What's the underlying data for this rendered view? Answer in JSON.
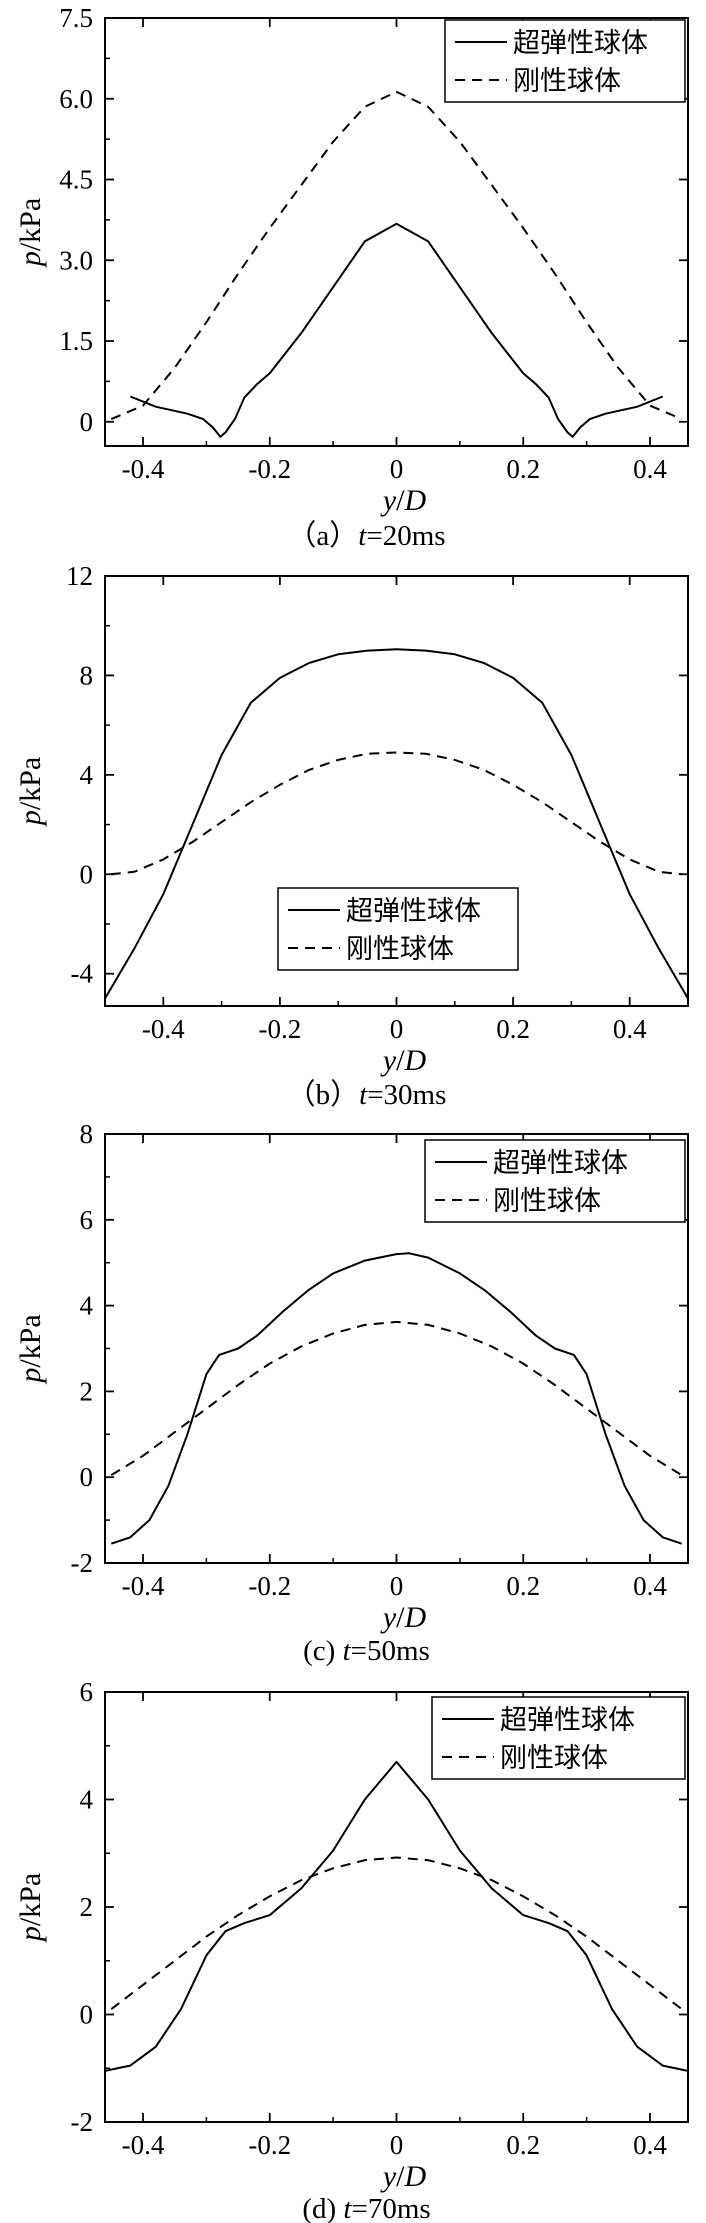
{
  "chart_data": [
    {
      "type": "line",
      "caption": {
        "prefix": "（a）",
        "var": "t",
        "eq": "=20ms"
      },
      "xlabel": {
        "var": "y",
        "sep": "/",
        "var2": "D"
      },
      "ylabel": {
        "var": "p",
        "unit": "/kPa"
      },
      "xlim": [
        -0.46,
        0.46
      ],
      "ylim": [
        -0.45,
        7.5
      ],
      "xticks": [
        -0.4,
        -0.2,
        0,
        0.2,
        0.4
      ],
      "yticks": [
        0,
        1.5,
        3.0,
        4.5,
        6.0,
        7.5
      ],
      "ytick_labels": [
        "0",
        "1.5",
        "3.0",
        "4.5",
        "6.0",
        "7.5"
      ],
      "legend": {
        "position": "top-right",
        "entries": [
          "超弹性球体",
          "刚性球体"
        ]
      },
      "series": [
        {
          "name": "超弹性球体",
          "style": "solid",
          "x": [
            -0.42,
            -0.38,
            -0.33,
            -0.305,
            -0.29,
            -0.278,
            -0.27,
            -0.255,
            -0.24,
            -0.22,
            -0.2,
            -0.15,
            -0.1,
            -0.05,
            0,
            0.05,
            0.1,
            0.15,
            0.2,
            0.22,
            0.24,
            0.255,
            0.27,
            0.278,
            0.29,
            0.305,
            0.33,
            0.38,
            0.42
          ],
          "y": [
            0.47,
            0.28,
            0.15,
            0.05,
            -0.1,
            -0.28,
            -0.2,
            0.05,
            0.45,
            0.7,
            0.9,
            1.65,
            2.5,
            3.35,
            3.68,
            3.35,
            2.5,
            1.65,
            0.9,
            0.7,
            0.45,
            0.05,
            -0.2,
            -0.28,
            -0.1,
            0.05,
            0.15,
            0.28,
            0.47
          ]
        },
        {
          "name": "刚性球体",
          "style": "dashed",
          "x": [
            -0.45,
            -0.4,
            -0.35,
            -0.3,
            -0.25,
            -0.2,
            -0.15,
            -0.1,
            -0.05,
            0,
            0.05,
            0.1,
            0.15,
            0.2,
            0.25,
            0.3,
            0.35,
            0.4,
            0.45
          ],
          "y": [
            0.05,
            0.3,
            1.0,
            1.85,
            2.75,
            3.6,
            4.4,
            5.2,
            5.85,
            6.13,
            5.85,
            5.2,
            4.4,
            3.6,
            2.75,
            1.85,
            1.0,
            0.3,
            0.05
          ]
        }
      ]
    },
    {
      "type": "line",
      "caption": {
        "prefix": "（b）",
        "var": "t",
        "eq": "=30ms"
      },
      "xlabel": {
        "var": "y",
        "sep": "/",
        "var2": "D"
      },
      "ylabel": {
        "var": "p",
        "unit": "/kPa"
      },
      "xlim": [
        -0.5,
        0.5
      ],
      "ylim": [
        -5.3,
        12
      ],
      "xticks": [
        -0.4,
        -0.2,
        0,
        0.2,
        0.4
      ],
      "yticks": [
        -4,
        0,
        4,
        8,
        12
      ],
      "ytick_labels": [
        "-4",
        "0",
        "4",
        "8",
        "12"
      ],
      "legend": {
        "position": "lower-center",
        "entries": [
          "超弹性球体",
          "刚性球体"
        ]
      },
      "series": [
        {
          "name": "超弹性球体",
          "style": "solid",
          "x": [
            -0.5,
            -0.45,
            -0.4,
            -0.35,
            -0.3,
            -0.25,
            -0.2,
            -0.15,
            -0.1,
            -0.05,
            0,
            0.05,
            0.1,
            0.15,
            0.2,
            0.25,
            0.3,
            0.35,
            0.4,
            0.45,
            0.5
          ],
          "y": [
            -5.0,
            -3.0,
            -0.8,
            2.0,
            4.8,
            6.9,
            7.9,
            8.5,
            8.85,
            9.0,
            9.05,
            9.0,
            8.85,
            8.5,
            7.9,
            6.9,
            4.8,
            2.0,
            -0.8,
            -3.0,
            -5.0
          ]
        },
        {
          "name": "刚性球体",
          "style": "dashed",
          "x": [
            -0.49,
            -0.45,
            -0.4,
            -0.35,
            -0.3,
            -0.25,
            -0.2,
            -0.15,
            -0.1,
            -0.05,
            0,
            0.05,
            0.1,
            0.15,
            0.2,
            0.25,
            0.3,
            0.35,
            0.4,
            0.45,
            0.49
          ],
          "y": [
            0.0,
            0.1,
            0.6,
            1.3,
            2.1,
            2.9,
            3.6,
            4.2,
            4.6,
            4.85,
            4.9,
            4.85,
            4.6,
            4.2,
            3.6,
            2.9,
            2.1,
            1.3,
            0.6,
            0.1,
            0.0
          ]
        }
      ]
    },
    {
      "type": "line",
      "caption": {
        "prefix": "(c) ",
        "var": "t",
        "eq": "=50ms"
      },
      "xlabel": {
        "var": "y",
        "sep": "/",
        "var2": "D"
      },
      "ylabel": {
        "var": "p",
        "unit": "/kPa"
      },
      "xlim": [
        -0.46,
        0.46
      ],
      "ylim": [
        -2,
        8
      ],
      "xticks": [
        -0.4,
        -0.2,
        0,
        0.2,
        0.4
      ],
      "yticks": [
        -2,
        0,
        2,
        4,
        6,
        8
      ],
      "ytick_labels": [
        "-2",
        "0",
        "2",
        "4",
        "6",
        "8"
      ],
      "legend": {
        "position": "top-right",
        "entries": [
          "超弹性球体",
          "刚性球体"
        ]
      },
      "series": [
        {
          "name": "超弹性球体",
          "style": "solid",
          "x": [
            -0.45,
            -0.42,
            -0.39,
            -0.36,
            -0.33,
            -0.3,
            -0.28,
            -0.25,
            -0.22,
            -0.18,
            -0.14,
            -0.1,
            -0.05,
            0,
            0.02,
            0.05,
            0.1,
            0.14,
            0.18,
            0.22,
            0.25,
            0.28,
            0.3,
            0.33,
            0.36,
            0.39,
            0.42,
            0.45
          ],
          "y": [
            -1.55,
            -1.4,
            -1.0,
            -0.2,
            1.0,
            2.4,
            2.85,
            3.0,
            3.3,
            3.85,
            4.35,
            4.75,
            5.05,
            5.2,
            5.22,
            5.12,
            4.75,
            4.35,
            3.85,
            3.3,
            3.0,
            2.85,
            2.4,
            1.0,
            -0.2,
            -1.0,
            -1.4,
            -1.55
          ]
        },
        {
          "name": "刚性球体",
          "style": "dashed",
          "x": [
            -0.45,
            -0.4,
            -0.35,
            -0.3,
            -0.25,
            -0.2,
            -0.15,
            -0.1,
            -0.05,
            0,
            0.05,
            0.1,
            0.15,
            0.2,
            0.25,
            0.3,
            0.35,
            0.4,
            0.45
          ],
          "y": [
            0.05,
            0.5,
            1.05,
            1.6,
            2.15,
            2.65,
            3.05,
            3.35,
            3.55,
            3.62,
            3.55,
            3.35,
            3.05,
            2.65,
            2.15,
            1.6,
            1.05,
            0.5,
            0.05
          ]
        }
      ]
    },
    {
      "type": "line",
      "caption": {
        "prefix": "(d) ",
        "var": "t",
        "eq": "=70ms"
      },
      "xlabel": {
        "var": "y",
        "sep": "/",
        "var2": "D"
      },
      "ylabel": {
        "var": "p",
        "unit": "/kPa"
      },
      "xlim": [
        -0.46,
        0.46
      ],
      "ylim": [
        -2,
        6
      ],
      "xticks": [
        -0.4,
        -0.2,
        0,
        0.2,
        0.4
      ],
      "yticks": [
        -2,
        0,
        2,
        4,
        6
      ],
      "ytick_labels": [
        "-2",
        "0",
        "2",
        "4",
        "6"
      ],
      "legend": {
        "position": "top-right",
        "entries": [
          "超弹性球体",
          "刚性球体"
        ]
      },
      "series": [
        {
          "name": "超弹性球体",
          "style": "solid",
          "x": [
            -0.46,
            -0.42,
            -0.38,
            -0.34,
            -0.3,
            -0.27,
            -0.24,
            -0.2,
            -0.15,
            -0.1,
            -0.05,
            0,
            0.05,
            0.1,
            0.15,
            0.2,
            0.24,
            0.27,
            0.3,
            0.34,
            0.38,
            0.42,
            0.46
          ],
          "y": [
            -1.05,
            -0.95,
            -0.6,
            0.1,
            1.1,
            1.55,
            1.7,
            1.85,
            2.35,
            3.05,
            4.0,
            4.7,
            4.0,
            3.05,
            2.35,
            1.85,
            1.7,
            1.55,
            1.1,
            0.1,
            -0.6,
            -0.95,
            -1.05
          ]
        },
        {
          "name": "刚性球体",
          "style": "dashed",
          "x": [
            -0.45,
            -0.4,
            -0.35,
            -0.3,
            -0.25,
            -0.2,
            -0.15,
            -0.1,
            -0.05,
            0,
            0.05,
            0.1,
            0.15,
            0.2,
            0.25,
            0.3,
            0.35,
            0.4,
            0.45
          ],
          "y": [
            0.1,
            0.55,
            1.0,
            1.45,
            1.85,
            2.2,
            2.5,
            2.72,
            2.87,
            2.92,
            2.87,
            2.72,
            2.5,
            2.2,
            1.85,
            1.45,
            1.0,
            0.55,
            0.1
          ]
        }
      ]
    }
  ]
}
